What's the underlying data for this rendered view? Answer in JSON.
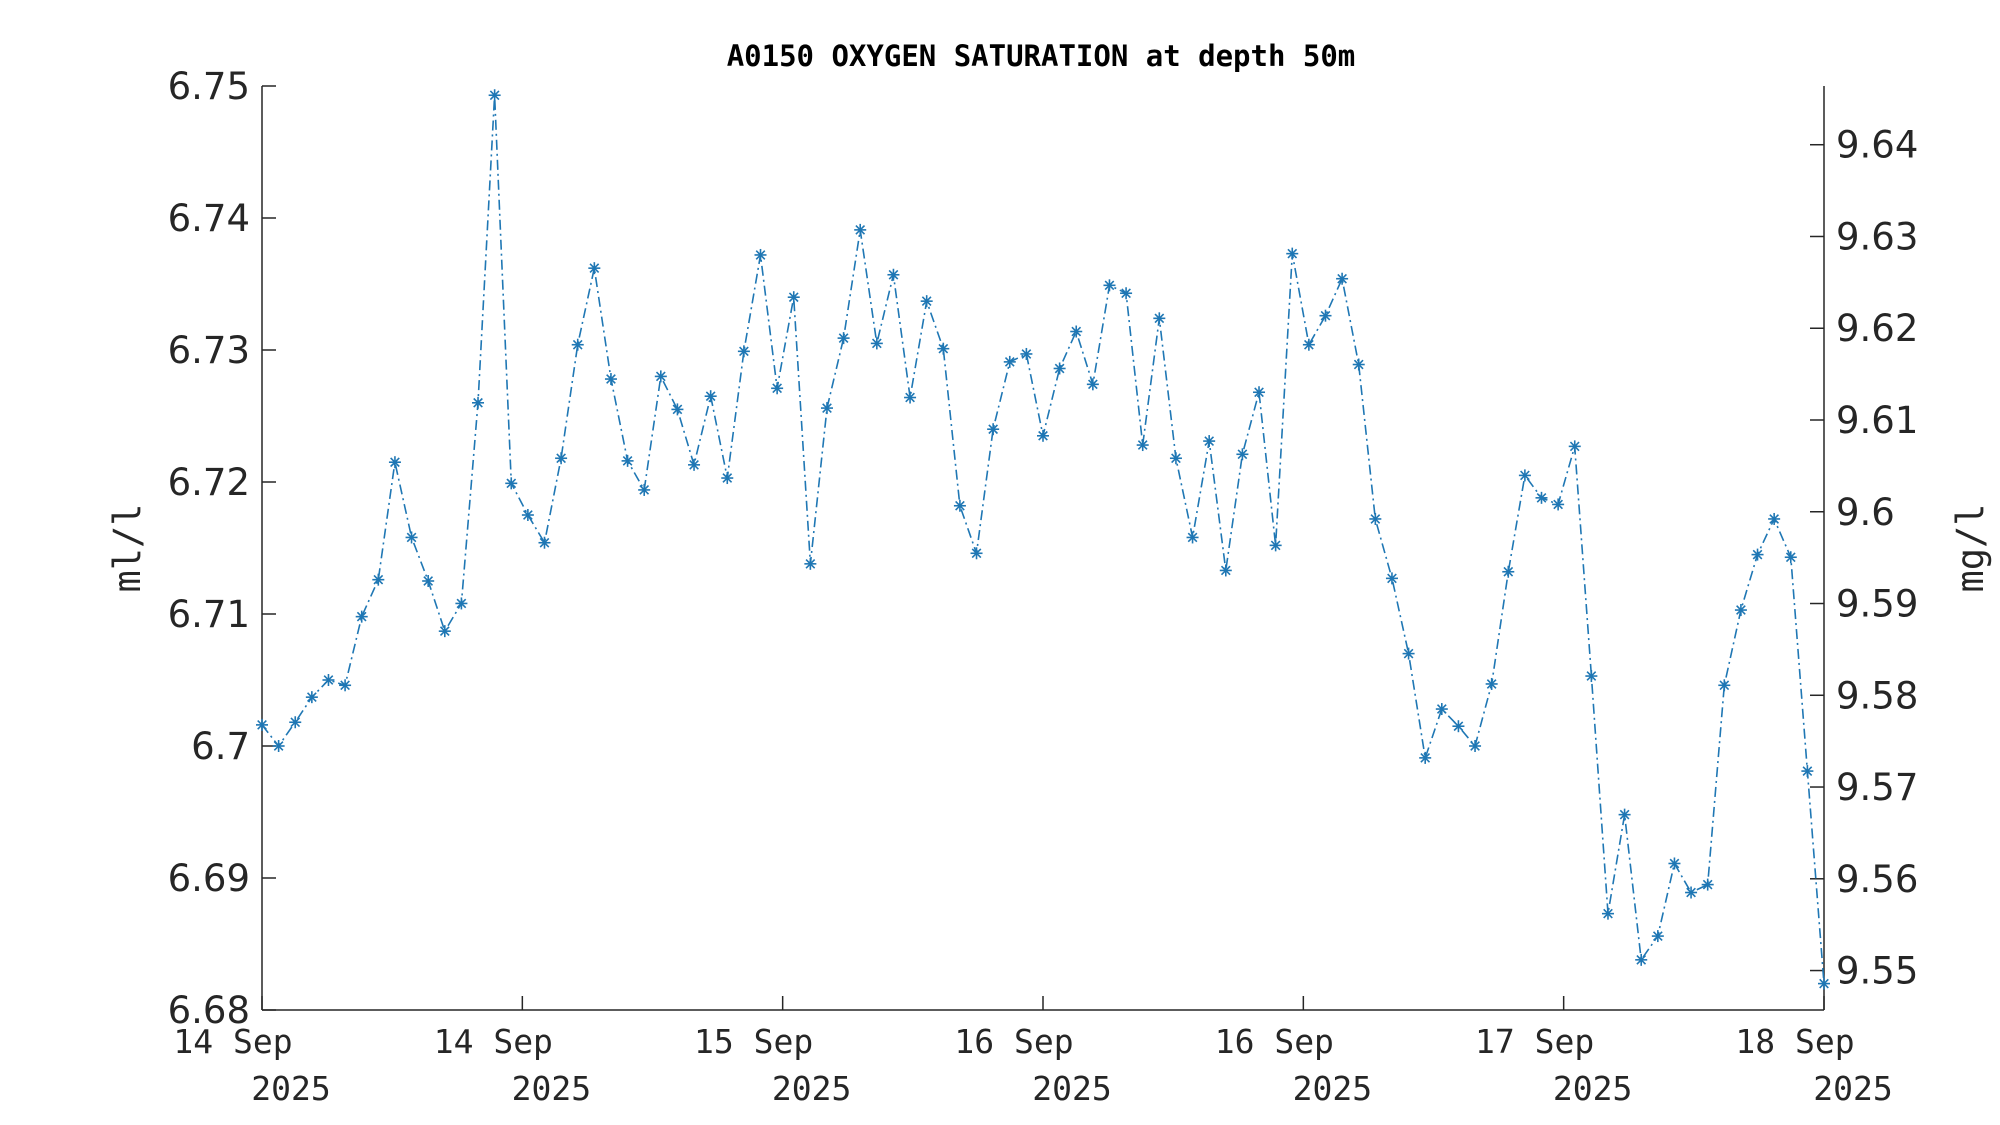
{
  "chart_data": {
    "type": "line",
    "title": "A0150 OXYGEN SATURATION at depth 50m",
    "ylabel_left": "ml/l",
    "ylabel_right": "mg/l",
    "ylim_left": [
      6.68,
      6.75
    ],
    "ylim_right": [
      9.5457,
      9.6464
    ],
    "yticks_left": [
      "6.68",
      "6.69",
      "6.7",
      "6.71",
      "6.72",
      "6.73",
      "6.74",
      "6.75"
    ],
    "yticks_left_values": [
      6.68,
      6.69,
      6.7,
      6.71,
      6.72,
      6.73,
      6.74,
      6.75
    ],
    "yticks_right": [
      "9.55",
      "9.56",
      "9.57",
      "9.58",
      "9.59",
      "9.6",
      "9.61",
      "9.62",
      "9.63",
      "9.64"
    ],
    "yticks_right_values": [
      9.55,
      9.56,
      9.57,
      9.58,
      9.59,
      9.6,
      9.61,
      9.62,
      9.63,
      9.64
    ],
    "xlim": [
      0,
      1
    ],
    "xticks": [
      {
        "pos": 0.0,
        "line1": "14 Sep",
        "line2": "2025"
      },
      {
        "pos": 0.16667,
        "line1": "14 Sep",
        "line2": "2025"
      },
      {
        "pos": 0.33333,
        "line1": "15 Sep",
        "line2": "2025"
      },
      {
        "pos": 0.5,
        "line1": "16 Sep",
        "line2": "2025"
      },
      {
        "pos": 0.66667,
        "line1": "16 Sep",
        "line2": "2025"
      },
      {
        "pos": 0.83333,
        "line1": "17 Sep",
        "line2": "2025"
      },
      {
        "pos": 1.0,
        "line1": "18 Sep",
        "line2": "2025"
      }
    ],
    "grid": false,
    "series": [
      {
        "color": "#1f77b4",
        "line_style": "dash-dot",
        "marker": "asterisk",
        "values": [
          6.7016,
          6.7,
          6.7018,
          6.7037,
          6.705,
          6.7046,
          6.7098,
          6.7126,
          6.7215,
          6.7158,
          6.7125,
          6.7087,
          6.7108,
          6.726,
          6.7493,
          6.7199,
          6.7175,
          6.7154,
          6.7218,
          6.7304,
          6.7362,
          6.7278,
          6.7216,
          6.7194,
          6.728,
          6.7255,
          6.7213,
          6.7265,
          6.7203,
          6.7299,
          6.7372,
          6.7271,
          6.734,
          6.7138,
          6.7256,
          6.7309,
          6.7391,
          6.7305,
          6.7357,
          6.7264,
          6.7337,
          6.7301,
          6.7182,
          6.7146,
          6.724,
          6.7291,
          6.7297,
          6.7235,
          6.7286,
          6.7314,
          6.7274,
          6.7349,
          6.7343,
          6.7228,
          6.7324,
          6.7218,
          6.7158,
          6.7231,
          6.7133,
          6.7221,
          6.7268,
          6.7152,
          6.7373,
          6.7304,
          6.7326,
          6.7354,
          6.7289,
          6.7172,
          6.7127,
          6.707,
          6.6991,
          6.7028,
          6.7015,
          6.7,
          6.7047,
          6.7132,
          6.7205,
          6.7188,
          6.7183,
          6.7227,
          6.7053,
          6.6873,
          6.6948,
          6.6838,
          6.6856,
          6.6911,
          6.6889,
          6.6895,
          6.7046,
          6.7103,
          6.7145,
          6.7172,
          6.7143,
          6.6981,
          6.682
        ]
      }
    ]
  }
}
